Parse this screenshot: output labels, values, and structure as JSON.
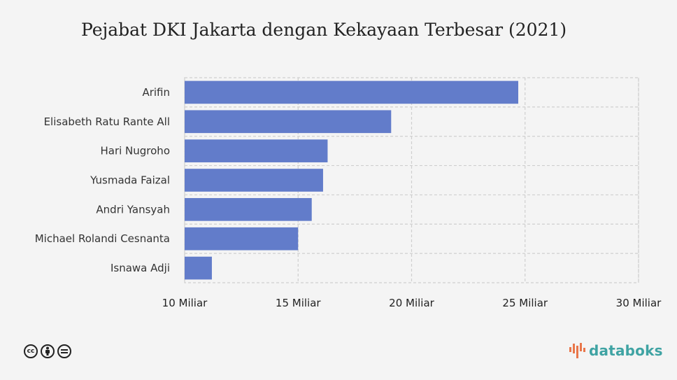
{
  "chart_data": {
    "type": "bar",
    "orientation": "horizontal",
    "title": "Pejabat DKI Jakarta dengan Kekayaan Terbesar (2021)",
    "categories": [
      "Arifin",
      "Elisabeth Ratu Rante All",
      "Hari Nugroho",
      "Yusmada Faizal",
      "Andri Yansyah",
      "Michael Rolandi Cesnanta",
      "Isnawa Adji"
    ],
    "values": [
      24.7,
      19.1,
      16.3,
      16.1,
      15.6,
      15.0,
      11.2
    ],
    "xlim": [
      10,
      30
    ],
    "xticks": [
      10,
      15,
      20,
      25,
      30
    ],
    "xtick_labels": [
      "10 Miliar",
      "15 Miliar",
      "20 Miliar",
      "25 Miliar",
      "30 Miliar"
    ],
    "grid": true,
    "bar_color": "#627cca"
  },
  "footer": {
    "brand": "databoks",
    "brand_color": "#3fa3a3",
    "license_icons": [
      "cc-icon",
      "attribution-icon",
      "no-derivatives-icon"
    ]
  }
}
